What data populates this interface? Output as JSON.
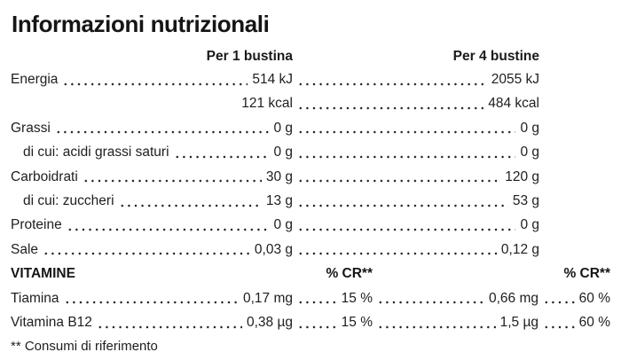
{
  "title": "Informazioni nutrizionali",
  "columns": {
    "per1": "Per 1 bustina",
    "per4": "Per 4 bustine"
  },
  "rows": [
    {
      "label": "Energia",
      "v1": "514 kJ",
      "v2": "2055 kJ"
    },
    {
      "label": "",
      "v1": "121 kcal",
      "v2": "484 kcal"
    },
    {
      "label": "Grassi",
      "v1": "0 g",
      "v2": "0 g"
    },
    {
      "label": "di cui: acidi grassi saturi",
      "v1": "0 g",
      "v2": "0 g"
    },
    {
      "label": "Carboidrati",
      "v1": "30 g",
      "v2": "120 g"
    },
    {
      "label": "di cui: zuccheri",
      "v1": "13 g",
      "v2": "53 g"
    },
    {
      "label": "Proteine",
      "v1": "0 g",
      "v2": "0 g"
    },
    {
      "label": "Sale",
      "v1": "0,03 g",
      "v2": "0,12 g"
    }
  ],
  "vitamins": {
    "section_label": "VITAMINE",
    "cr_header": "% CR**",
    "rows": [
      {
        "label": "Tiamina",
        "v1": "0,17 mg",
        "cr1": "15 %",
        "v2": "0,66 mg",
        "cr2": "60 %"
      },
      {
        "label": "Vitamina B12",
        "v1": "0,38 µg",
        "cr1": "15 %",
        "v2": "1,5 µg",
        "cr2": "60 %"
      }
    ]
  },
  "footnote": "** Consumi di riferimento",
  "colors": {
    "text": "#1e1e20",
    "heading": "#151517",
    "background": "#ffffff"
  }
}
